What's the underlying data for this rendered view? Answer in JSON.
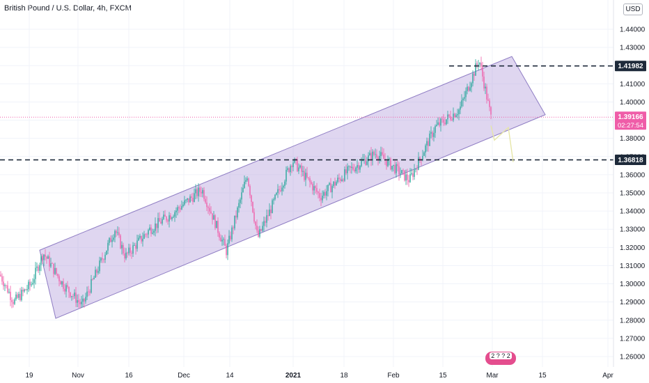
{
  "header": {
    "symbol_title": "British Pound / U.S. Dollar, 4h, FXCM",
    "currency_badge": "USD"
  },
  "colors": {
    "up_candle": "#26a69a",
    "down_candle": "#ef5da8",
    "channel_fill": "#b39ddb",
    "channel_stroke": "#8e7cc3",
    "level_line": "#1e2a3a",
    "current_price": "#ef5da8",
    "projection": "#e6e6a8"
  },
  "chart_data": {
    "type": "candlestick",
    "instrument": "GBP/USD",
    "timeframe": "4h",
    "source": "FXCM",
    "ylim": [
      1.253,
      1.455
    ],
    "y_ticks": [
      "1.26000",
      "1.27000",
      "1.28000",
      "1.29000",
      "1.30000",
      "1.31000",
      "1.32000",
      "1.33000",
      "1.34000",
      "1.35000",
      "1.36000",
      "1.37000",
      "1.38000",
      "1.39000",
      "1.40000",
      "1.41000",
      "1.42000",
      "1.43000",
      "1.44000"
    ],
    "x_ticks": [
      "19",
      "Nov",
      "16",
      "Dec",
      "14",
      "2021",
      "18",
      "Feb",
      "15",
      "Mar",
      "15",
      "Apr"
    ],
    "approx_price_path": [
      {
        "x": 0,
        "y": 1.305
      },
      {
        "x": 20,
        "y": 1.29
      },
      {
        "x": 45,
        "y": 1.3
      },
      {
        "x": 62,
        "y": 1.317
      },
      {
        "x": 90,
        "y": 1.3
      },
      {
        "x": 118,
        "y": 1.288
      },
      {
        "x": 165,
        "y": 1.33
      },
      {
        "x": 180,
        "y": 1.315
      },
      {
        "x": 215,
        "y": 1.33
      },
      {
        "x": 245,
        "y": 1.338
      },
      {
        "x": 290,
        "y": 1.352
      },
      {
        "x": 325,
        "y": 1.318
      },
      {
        "x": 355,
        "y": 1.36
      },
      {
        "x": 370,
        "y": 1.325
      },
      {
        "x": 420,
        "y": 1.368
      },
      {
        "x": 460,
        "y": 1.348
      },
      {
        "x": 500,
        "y": 1.362
      },
      {
        "x": 540,
        "y": 1.372
      },
      {
        "x": 588,
        "y": 1.357
      },
      {
        "x": 625,
        "y": 1.386
      },
      {
        "x": 660,
        "y": 1.396
      },
      {
        "x": 688,
        "y": 1.4235
      },
      {
        "x": 705,
        "y": 1.3916
      }
    ],
    "horizontal_levels": [
      {
        "label": "1.41982",
        "value": 1.41982
      },
      {
        "label": "1.36818",
        "value": 1.36818
      }
    ],
    "current_price": {
      "label": "1.39166",
      "value": 1.39166,
      "countdown": "02:27:54"
    },
    "channel": {
      "upper_start": {
        "x": 57,
        "y": 1.3185
      },
      "upper_end": {
        "x": 735,
        "y": 1.425
      },
      "lower_start": {
        "x": 80,
        "y": 1.281
      },
      "lower_end": {
        "x": 783,
        "y": 1.393
      }
    },
    "projection_path": [
      {
        "x": 705,
        "y": 1.387
      },
      {
        "x": 710,
        "y": 1.379
      },
      {
        "x": 730,
        "y": 1.386
      },
      {
        "x": 737,
        "y": 1.367
      }
    ],
    "event_badge": "2 ? ? 2"
  }
}
